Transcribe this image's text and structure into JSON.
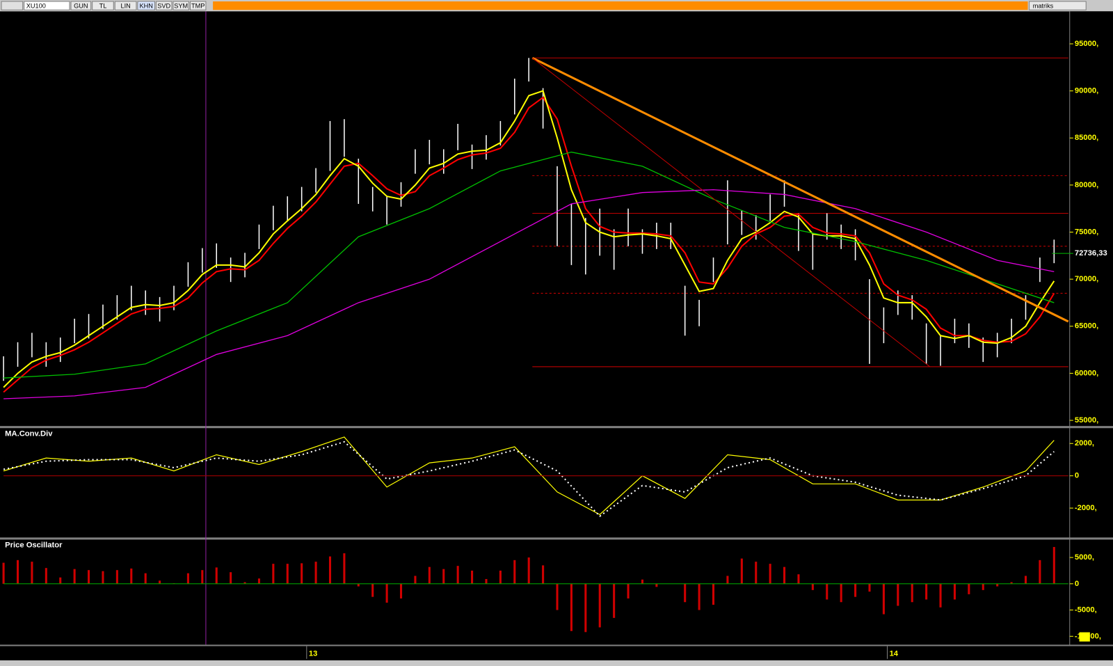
{
  "toolbar": {
    "symbol": "XU100",
    "buttons": [
      "GUN",
      "TL",
      "LIN",
      "KHN",
      "SVD",
      "SYM",
      "TMP"
    ],
    "brand": "matriks"
  },
  "chart_data": [
    {
      "type": "ohlc",
      "xlim": [
        0,
        75
      ],
      "xticks": [
        {
          "value": 21.35,
          "label": "13"
        },
        {
          "value": 62.25,
          "label": "14"
        }
      ],
      "ylim": [
        54400,
        98300
      ],
      "yticks": [
        {
          "value": 55000,
          "label": "55000,"
        },
        {
          "value": 60000,
          "label": "60000,"
        },
        {
          "value": 65000,
          "label": "65000,"
        },
        {
          "value": 70000,
          "label": "70000,"
        },
        {
          "value": 75000,
          "label": "75000,"
        },
        {
          "value": 80000,
          "label": "80000,"
        },
        {
          "value": 85000,
          "label": "85000,"
        },
        {
          "value": 90000,
          "label": "90000,"
        },
        {
          "value": 95000,
          "label": "95000,"
        }
      ],
      "bar_color": "#ffffff",
      "high": [
        61800,
        63300,
        64300,
        63300,
        63800,
        65800,
        66300,
        67300,
        68300,
        69300,
        68800,
        68100,
        69300,
        71800,
        73300,
        73800,
        72300,
        72800,
        75800,
        77800,
        78800,
        79800,
        81800,
        86800,
        87000,
        82800,
        79800,
        78800,
        80300,
        83800,
        84800,
        83800,
        86500,
        84300,
        85300,
        86800,
        91300,
        93500,
        90300,
        82000,
        78000,
        76500,
        77500,
        75300,
        77500,
        75300,
        76000,
        76000,
        69300,
        67800,
        72300,
        80500,
        77300,
        76800,
        79000,
        80500,
        77000,
        74800,
        77000,
        75800,
        75300,
        70000,
        67000,
        68800,
        68300,
        65300,
        64000,
        65800,
        65300,
        63800,
        64300,
        65800,
        68300,
        72300,
        74200
      ],
      "low": [
        59200,
        60700,
        61700,
        60700,
        61200,
        63200,
        63700,
        64700,
        65700,
        66700,
        66200,
        65500,
        66700,
        69200,
        70700,
        71200,
        69700,
        70200,
        73200,
        75200,
        76200,
        77200,
        79200,
        81500,
        83000,
        78000,
        77200,
        75800,
        77700,
        81200,
        82200,
        81200,
        83700,
        81700,
        82700,
        84200,
        87500,
        91000,
        86000,
        73500,
        71500,
        70500,
        72500,
        71000,
        73500,
        72700,
        73200,
        73200,
        64000,
        65000,
        69700,
        73700,
        74700,
        74200,
        76200,
        77700,
        73000,
        71000,
        74200,
        73200,
        72000,
        61000,
        63200,
        66200,
        65700,
        61000,
        60800,
        63200,
        62700,
        61200,
        61700,
        63200,
        65700,
        69700,
        71700
      ],
      "series": [
        {
          "color": "#ff0000",
          "values": [
            58000,
            59300,
            60600,
            61400,
            61900,
            62500,
            63300,
            64300,
            65300,
            66300,
            66800,
            66900,
            67100,
            68000,
            69600,
            70800,
            71100,
            71000,
            72000,
            73800,
            75400,
            76700,
            78200,
            80100,
            82000,
            82300,
            81000,
            79600,
            78900,
            79300,
            81000,
            81800,
            82700,
            83200,
            83400,
            83900,
            85600,
            88200,
            89300,
            87000,
            82000,
            77500,
            75600,
            75000,
            74900,
            74900,
            74800,
            74600,
            72800,
            69700,
            69500,
            71200,
            73500,
            74800,
            75500,
            76700,
            76900,
            75500,
            74900,
            74800,
            74600,
            72800,
            69500,
            68300,
            67800,
            66800,
            64800,
            64000,
            64000,
            63500,
            63300,
            63400,
            64200,
            66000,
            68500
          ]
        },
        {
          "color": "#ffff00",
          "values": [
            58500,
            60000,
            61200,
            61800,
            62200,
            63000,
            64000,
            65000,
            66000,
            67000,
            67300,
            67200,
            67500,
            68800,
            70500,
            71500,
            71500,
            71300,
            72800,
            74800,
            76200,
            77500,
            79000,
            81000,
            82800,
            82000,
            80200,
            78800,
            78500,
            80000,
            81800,
            82300,
            83300,
            83600,
            83700,
            84500,
            86800,
            89500,
            90000,
            85000,
            79500,
            76000,
            75000,
            74500,
            74700,
            74800,
            74600,
            74300,
            71500,
            68700,
            69000,
            72000,
            74300,
            75000,
            76000,
            77200,
            76600,
            74800,
            74600,
            74600,
            74300,
            71500,
            68000,
            67500,
            67500,
            66000,
            64000,
            63700,
            64000,
            63300,
            63200,
            63800,
            65000,
            67500,
            69800
          ]
        },
        {
          "color": "#00c000",
          "x": [
            0,
            5,
            10,
            15,
            20,
            25,
            30,
            35,
            40,
            45,
            50,
            55,
            60,
            65,
            70,
            74
          ],
          "values": [
            59500,
            59900,
            61000,
            64500,
            67500,
            74500,
            77500,
            81500,
            83500,
            82000,
            78500,
            75500,
            74000,
            72000,
            69500,
            67500
          ]
        },
        {
          "color": "#e000e0",
          "x": [
            0,
            5,
            10,
            15,
            20,
            25,
            30,
            35,
            40,
            45,
            50,
            55,
            60,
            65,
            70,
            74
          ],
          "values": [
            57300,
            57600,
            58500,
            62000,
            64000,
            67500,
            70000,
            74000,
            78000,
            79200,
            79500,
            79000,
            77500,
            75000,
            72000,
            70800
          ]
        }
      ],
      "levels": [
        {
          "value": 93500,
          "style": "solid",
          "color": "#c00000",
          "x": [
            37.25,
            75
          ]
        },
        {
          "value": 81000,
          "style": "dashed",
          "color": "#c00000",
          "x": [
            37.25,
            75
          ]
        },
        {
          "value": 77000,
          "style": "solid",
          "color": "#c00000",
          "x": [
            37.25,
            75
          ]
        },
        {
          "value": 73500,
          "style": "dashed",
          "color": "#c00000",
          "x": [
            37.25,
            75
          ]
        },
        {
          "value": 68500,
          "style": "dashed",
          "color": "#c00000",
          "x": [
            37.25,
            75
          ]
        },
        {
          "value": 60700,
          "style": "solid",
          "color": "#c00000",
          "x": [
            37.25,
            75
          ]
        }
      ],
      "trendlines": [
        {
          "color": "#ff8c00",
          "width": 3,
          "x": [
            37.25,
            75
          ],
          "values": [
            93500,
            65500
          ]
        },
        {
          "color": "#c00000",
          "width": 1,
          "x": [
            37.25,
            65.25
          ],
          "values": [
            93500,
            60700
          ]
        }
      ],
      "last_value": {
        "value": 72736.33,
        "label": "72736,33"
      }
    },
    {
      "type": "line",
      "title": "MA.Conv.Div",
      "ylim": [
        -3820,
        2950
      ],
      "yticks": [
        {
          "value": 2000,
          "label": "2000,"
        },
        0,
        {
          "value": -2000,
          "label": "-2000,"
        }
      ],
      "zero_color": "#a00000",
      "series": [
        {
          "color": "#ffff00",
          "style": "solid",
          "x": [
            0,
            3,
            6,
            9,
            12,
            15,
            18,
            21,
            24,
            27,
            30,
            33,
            36,
            39,
            42,
            45,
            48,
            51,
            54,
            57,
            60,
            63,
            66,
            69,
            72,
            74
          ],
          "values": [
            300,
            1100,
            900,
            1100,
            300,
            1300,
            700,
            1500,
            2400,
            -700,
            800,
            1100,
            1800,
            -1000,
            -2400,
            0,
            -1400,
            1300,
            1000,
            -500,
            -500,
            -1500,
            -1500,
            -700,
            300,
            2200
          ]
        },
        {
          "color": "#ffffff",
          "style": "dotted",
          "x": [
            0,
            3,
            6,
            9,
            12,
            15,
            18,
            21,
            24,
            27,
            30,
            33,
            36,
            39,
            42,
            45,
            48,
            51,
            54,
            57,
            60,
            63,
            66,
            69,
            72,
            74
          ],
          "values": [
            400,
            900,
            1000,
            1000,
            500,
            1100,
            900,
            1300,
            2100,
            -200,
            300,
            900,
            1600,
            300,
            -2500,
            -600,
            -1000,
            500,
            1100,
            0,
            -400,
            -1200,
            -1500,
            -800,
            0,
            1500
          ]
        }
      ]
    },
    {
      "type": "bar",
      "title": "Price Oscillator",
      "ylim": [
        -11600,
        8400
      ],
      "yticks": [
        {
          "value": 5000,
          "label": "5000,"
        },
        0,
        {
          "value": -5000,
          "label": "-5000,"
        },
        {
          "value": -10000,
          "label": "-10000,"
        }
      ],
      "zero_color": "#00a000",
      "color": "#d00000",
      "values": [
        4000,
        4500,
        4200,
        3000,
        1200,
        2800,
        2600,
        2400,
        2600,
        2900,
        2000,
        600,
        100,
        2000,
        2600,
        3100,
        2200,
        300,
        1000,
        3800,
        3800,
        3900,
        4200,
        5200,
        5800,
        -500,
        -2500,
        -3600,
        -2800,
        1500,
        3200,
        2800,
        3400,
        2500,
        900,
        2500,
        4500,
        5000,
        3500,
        -5000,
        -9000,
        -9200,
        -8300,
        -6500,
        -2800,
        800,
        -600,
        0,
        -3500,
        -5000,
        -4000,
        1500,
        4800,
        4200,
        3800,
        3200,
        1800,
        -1200,
        -3000,
        -3500,
        -2500,
        -1500,
        -5800,
        -4200,
        -3500,
        -3000,
        -4500,
        -3000,
        -2000,
        -1200,
        -500,
        300,
        1500,
        4500,
        7000
      ]
    }
  ]
}
